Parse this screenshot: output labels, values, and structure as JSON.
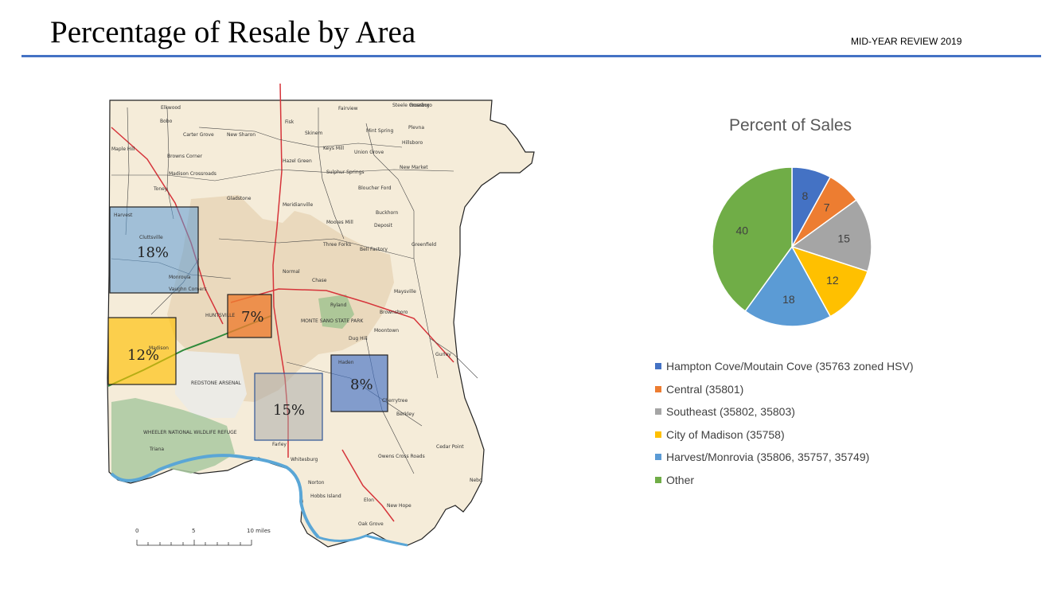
{
  "header": {
    "title": "Percentage of Resale by Area",
    "subtitle": "MID-YEAR REVIEW 2019"
  },
  "map": {
    "area_labels": [
      "18%",
      "7%",
      "12%",
      "15%",
      "8%"
    ],
    "place_labels": [
      "Elkwood",
      "Bobo",
      "Carter Grove",
      "New Sharon",
      "Fisk",
      "Skinem",
      "Fairview",
      "Steele Crossing",
      "Roseboro",
      "Plevna",
      "Mint Spring",
      "Hillsboro",
      "Maple Hill",
      "Browns Corner",
      "Keys Mill",
      "Union Grove",
      "Hazel Green",
      "New Market",
      "Madison Crossroads",
      "Sulphur Springs",
      "Toney",
      "Gladstone",
      "Bloucher Ford",
      "Meridianville",
      "Buckhorn",
      "Harvest",
      "Moores Mill",
      "Deposit",
      "Cluttsville",
      "Three Forks",
      "Bell Factory",
      "Greenfield",
      "Normal",
      "Chase",
      "Monrovia",
      "Vaughn Corners",
      "Maysville",
      "Ryland",
      "Brownsboro",
      "HUNTSVILLE",
      "MONTE SANO STATE PARK",
      "Moontown",
      "Madison",
      "Dug Hill",
      "Gurley",
      "Haden",
      "REDSTONE ARSENAL",
      "Cherrytree",
      "Berkley",
      "WHEELER NATIONAL WILDLIFE REFUGE",
      "Farley",
      "Triana",
      "Whitesburg",
      "Cedar Point",
      "Owens Cross Roads",
      "Norton",
      "Hobbs Island",
      "Nebo",
      "Elon",
      "New Hope",
      "Oak Grove"
    ],
    "scale": {
      "ticks": [
        "0",
        "5",
        "10 miles"
      ]
    }
  },
  "chart_data": {
    "type": "pie",
    "title": "Percent of Sales",
    "slices": [
      {
        "label": "Hampton Cove/Moutain Cove (35763 zoned HSV)",
        "value": 8,
        "color": "#4472c4"
      },
      {
        "label": "Central (35801)",
        "value": 7,
        "color": "#ed7d31"
      },
      {
        "label": "Southeast (35802, 35803)",
        "value": 15,
        "color": "#a5a5a5"
      },
      {
        "label": "City of Madison (35758)",
        "value": 12,
        "color": "#ffc000"
      },
      {
        "label": "Harvest/Monrovia (35806, 35757, 35749)",
        "value": 18,
        "color": "#5b9bd5"
      },
      {
        "label": "Other",
        "value": 40,
        "color": "#70ad47"
      }
    ],
    "legend_position": "bottom"
  }
}
